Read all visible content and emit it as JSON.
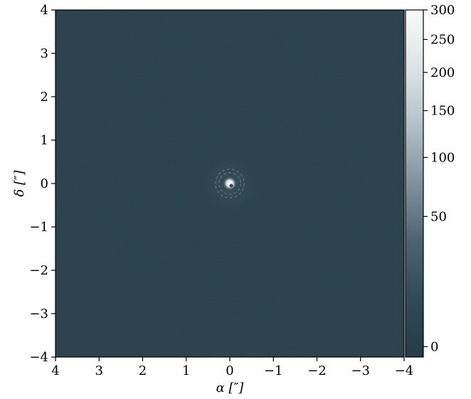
{
  "chart_data": {
    "type": "heatmap",
    "title": "",
    "xlabel": "α [″]",
    "ylabel": "δ [″]",
    "xlim": [
      4,
      -4
    ],
    "ylim": [
      -4,
      4
    ],
    "x_ticks": [
      "4",
      "3",
      "2",
      "1",
      "0",
      "−1",
      "−2",
      "−3",
      "−4"
    ],
    "y_ticks": [
      "−4",
      "−3",
      "−2",
      "−1",
      "0",
      "1",
      "2",
      "3",
      "4"
    ],
    "x_tick_values": [
      4,
      3,
      2,
      1,
      0,
      -1,
      -2,
      -3,
      -4
    ],
    "y_tick_values": [
      -4,
      -3,
      -2,
      -1,
      0,
      1,
      2,
      3,
      4
    ],
    "colorbar": {
      "range": [
        -10,
        300
      ],
      "scale": "nonlinear",
      "ticks": [
        "0",
        "50",
        "100",
        "150",
        "200",
        "250",
        "300"
      ],
      "tick_values": [
        0,
        50,
        100,
        150,
        200,
        250,
        300
      ],
      "tick_fraction": [
        0.03,
        0.405,
        0.575,
        0.71,
        0.82,
        0.915,
        1.0
      ],
      "colormap": [
        "#263d47",
        "#2f4a55",
        "#4d6470",
        "#7f929c",
        "#b2c0c8",
        "#dde4e6",
        "#f8faf6"
      ]
    },
    "image": {
      "background_value": 0,
      "source": {
        "x": 0,
        "y": 0,
        "peak": 300
      },
      "ring_radii": [
        0.25,
        0.33
      ],
      "background_color": "#263d47"
    },
    "grid": false
  }
}
